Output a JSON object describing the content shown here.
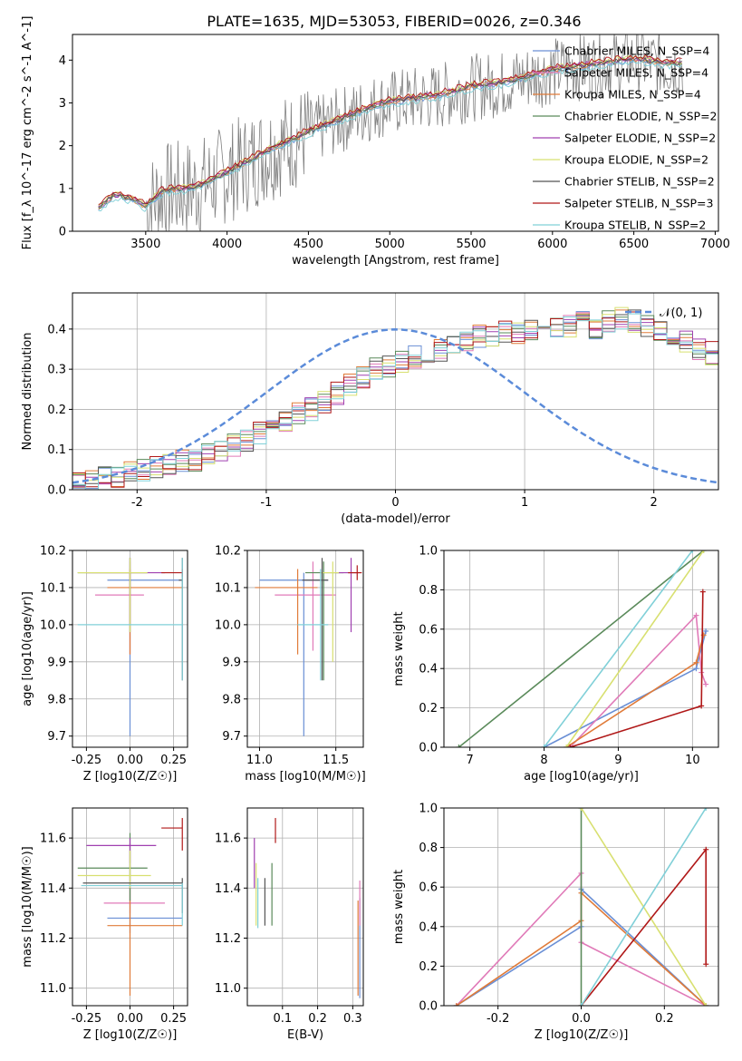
{
  "figure": {
    "title": "PLATE=1635, MJD=53053, FIBERID=0026, z=0.346"
  },
  "chart_data": [
    {
      "id": "spectrum",
      "type": "line",
      "xlabel": "wavelength [Angstrom, rest frame]",
      "ylabel": "Flux [f_λ 10^-17 erg cm^-2 s^-1 A^-1]",
      "xlim": [
        3050,
        7020
      ],
      "ylim": [
        0,
        4.6
      ],
      "xticks": [
        3500,
        4000,
        4500,
        5000,
        5500,
        6000,
        6500,
        7000
      ],
      "yticks": [
        0,
        1,
        2,
        3,
        4
      ],
      "grid": false,
      "legend_position": "upper-right",
      "data_color": "#808080",
      "data_points": [
        [
          3210,
          0.5
        ],
        [
          3300,
          0.8
        ],
        [
          3400,
          0.75
        ],
        [
          3500,
          0.55
        ],
        [
          3600,
          0.9
        ],
        [
          3700,
          0.95
        ],
        [
          3800,
          1.0
        ],
        [
          3900,
          1.15
        ],
        [
          4000,
          1.35
        ],
        [
          4100,
          1.55
        ],
        [
          4200,
          1.75
        ],
        [
          4300,
          1.95
        ],
        [
          4400,
          2.1
        ],
        [
          4500,
          2.3
        ],
        [
          4600,
          2.45
        ],
        [
          4700,
          2.6
        ],
        [
          4800,
          2.75
        ],
        [
          4900,
          2.9
        ],
        [
          5000,
          3.0
        ],
        [
          5100,
          3.05
        ],
        [
          5200,
          3.1
        ],
        [
          5300,
          3.15
        ],
        [
          5400,
          3.25
        ],
        [
          5500,
          3.35
        ],
        [
          5600,
          3.4
        ],
        [
          5700,
          3.45
        ],
        [
          5800,
          3.55
        ],
        [
          5900,
          3.65
        ],
        [
          6000,
          3.75
        ],
        [
          6100,
          3.8
        ],
        [
          6200,
          3.85
        ],
        [
          6300,
          3.9
        ],
        [
          6400,
          3.95
        ],
        [
          6500,
          4.0
        ],
        [
          6600,
          3.95
        ],
        [
          6700,
          3.9
        ],
        [
          6800,
          3.9
        ]
      ],
      "series": [
        {
          "name": "Chabrier MILES, N_SSP=4",
          "color": "#6a8fd5",
          "offset": 0.0
        },
        {
          "name": "Salpeter MILES, N_SSP=4",
          "color": "#e07ab8",
          "offset": 0.05
        },
        {
          "name": "Kroupa MILES, N_SSP=4",
          "color": "#e07b39",
          "offset": 0.02
        },
        {
          "name": "Chabrier ELODIE, N_SSP=2",
          "color": "#5a8a5a",
          "offset": 0.04
        },
        {
          "name": "Salpeter ELODIE, N_SSP=2",
          "color": "#a040b0",
          "offset": 0.06
        },
        {
          "name": "Kroupa ELODIE, N_SSP=2",
          "color": "#d8e070",
          "offset": 0.08
        },
        {
          "name": "Chabrier STELIB, N_SSP=2",
          "color": "#555555",
          "offset": 0.03
        },
        {
          "name": "Salpeter STELIB, N_SSP=3",
          "color": "#b01818",
          "offset": 0.1
        },
        {
          "name": "Kroupa STELIB, N_SSP=2",
          "color": "#80d0d8",
          "offset": -0.05
        }
      ]
    },
    {
      "id": "residuals",
      "type": "step",
      "xlabel": "(data-model)/error",
      "ylabel": "Normed distribution",
      "xlim": [
        -2.5,
        2.5
      ],
      "ylim": [
        0,
        0.49
      ],
      "xticks": [
        -2,
        -1,
        0,
        1,
        2
      ],
      "yticks": [
        0.0,
        0.1,
        0.2,
        0.3,
        0.4
      ],
      "grid": true,
      "legend_position": "upper-right",
      "gaussian_label": "𝒩(0, 1)",
      "gaussian_color": "#5b8bd9",
      "bin_width": 0.1,
      "base_values": [
        0.02,
        0.025,
        0.03,
        0.035,
        0.04,
        0.05,
        0.055,
        0.06,
        0.07,
        0.075,
        0.09,
        0.1,
        0.11,
        0.12,
        0.14,
        0.15,
        0.17,
        0.19,
        0.2,
        0.22,
        0.24,
        0.26,
        0.28,
        0.3,
        0.31,
        0.32,
        0.33,
        0.34,
        0.35,
        0.36,
        0.37,
        0.38,
        0.38,
        0.39,
        0.39,
        0.4,
        0.4,
        0.41,
        0.41,
        0.42,
        0.4,
        0.42,
        0.43,
        0.42,
        0.41,
        0.39,
        0.38,
        0.37,
        0.35,
        0.34,
        0.32,
        0.3,
        0.28,
        0.26,
        0.24,
        0.22,
        0.21,
        0.19,
        0.17,
        0.15,
        0.14,
        0.13,
        0.11,
        0.1,
        0.09,
        0.08,
        0.07,
        0.06,
        0.06,
        0.05,
        0.05
      ],
      "series_colors": [
        "#6a8fd5",
        "#e07ab8",
        "#e07b39",
        "#5a8a5a",
        "#a040b0",
        "#d8e070",
        "#555555",
        "#b01818",
        "#80d0d8"
      ]
    },
    {
      "id": "age_vs_Z",
      "type": "errorbar",
      "xlabel": "Z [log10(Z/Z☉)]",
      "ylabel": "age [log10(age/yr)]",
      "xlim": [
        -0.33,
        0.33
      ],
      "ylim": [
        9.67,
        10.2
      ],
      "xticks": [
        -0.25,
        0.0,
        0.25
      ],
      "yticks": [
        9.7,
        9.8,
        9.9,
        10.0,
        10.1,
        10.2
      ],
      "grid": true,
      "points": [
        {
          "x": 0.0,
          "y": 10.12,
          "xlo": -0.13,
          "xhi": 0.3,
          "ylo": 9.7,
          "yhi": 10.18,
          "color": "#6a8fd5"
        },
        {
          "x": 0.0,
          "y": 10.08,
          "xlo": -0.2,
          "xhi": 0.08,
          "ylo": 9.92,
          "yhi": 10.17,
          "color": "#e07ab8"
        },
        {
          "x": 0.0,
          "y": 10.1,
          "xlo": -0.13,
          "xhi": 0.3,
          "ylo": 9.92,
          "yhi": 10.15,
          "color": "#e07b39"
        },
        {
          "x": 0.0,
          "y": 10.14,
          "xlo": -0.3,
          "xhi": 0.1,
          "ylo": 9.98,
          "yhi": 10.18,
          "color": "#5a8a5a"
        },
        {
          "x": 0.0,
          "y": 10.14,
          "xlo": -0.25,
          "xhi": 0.2,
          "ylo": 10.0,
          "yhi": 10.18,
          "color": "#a040b0"
        },
        {
          "x": 0.0,
          "y": 10.14,
          "xlo": -0.3,
          "xhi": 0.1,
          "ylo": 9.98,
          "yhi": 10.18,
          "color": "#d8e070"
        },
        {
          "x": 0.3,
          "y": 10.12,
          "xlo": 0.28,
          "xhi": 0.3,
          "ylo": 9.85,
          "yhi": 10.18,
          "color": "#555555"
        },
        {
          "x": 0.3,
          "y": 10.14,
          "xlo": 0.18,
          "xhi": 0.3,
          "ylo": 10.13,
          "yhi": 10.15,
          "color": "#b01818"
        },
        {
          "x": 0.3,
          "y": 10.0,
          "xlo": -0.3,
          "xhi": 0.3,
          "ylo": 9.85,
          "yhi": 10.18,
          "color": "#80d0d8"
        }
      ]
    },
    {
      "id": "age_vs_mass",
      "type": "errorbar",
      "xlabel": "mass [log10(M/M☉)]",
      "ylabel": "",
      "xlim": [
        10.92,
        11.68
      ],
      "ylim": [
        9.67,
        10.2
      ],
      "xticks": [
        11.0,
        11.5
      ],
      "yticks": [
        9.7,
        9.8,
        9.9,
        10.0,
        10.1,
        10.2
      ],
      "grid": true,
      "points": [
        {
          "x": 11.29,
          "y": 10.12,
          "xlo": 11.0,
          "xhi": 11.45,
          "ylo": 9.7,
          "yhi": 10.14,
          "color": "#6a8fd5"
        },
        {
          "x": 11.35,
          "y": 10.08,
          "xlo": 11.1,
          "xhi": 11.5,
          "ylo": 9.93,
          "yhi": 10.17,
          "color": "#e07ab8"
        },
        {
          "x": 11.25,
          "y": 10.1,
          "xlo": 10.97,
          "xhi": 11.38,
          "ylo": 9.92,
          "yhi": 10.15,
          "color": "#e07b39"
        },
        {
          "x": 11.42,
          "y": 10.14,
          "xlo": 11.3,
          "xhi": 11.55,
          "ylo": 9.85,
          "yhi": 10.17,
          "color": "#5a8a5a"
        },
        {
          "x": 11.6,
          "y": 10.14,
          "xlo": 11.5,
          "xhi": 11.65,
          "ylo": 9.98,
          "yhi": 10.18,
          "color": "#a040b0"
        },
        {
          "x": 11.48,
          "y": 10.14,
          "xlo": 11.4,
          "xhi": 11.52,
          "ylo": 9.9,
          "yhi": 10.17,
          "color": "#d8e070"
        },
        {
          "x": 11.41,
          "y": 10.12,
          "xlo": 11.28,
          "xhi": 11.45,
          "ylo": 9.85,
          "yhi": 10.18,
          "color": "#555555"
        },
        {
          "x": 11.64,
          "y": 10.14,
          "xlo": 11.58,
          "xhi": 11.67,
          "ylo": 10.12,
          "yhi": 10.16,
          "color": "#b01818"
        },
        {
          "x": 11.4,
          "y": 10.0,
          "xlo": 11.25,
          "xhi": 11.45,
          "ylo": 9.85,
          "yhi": 10.15,
          "color": "#80d0d8"
        }
      ]
    },
    {
      "id": "weight_vs_age",
      "type": "line",
      "xlabel": "age [log10(age/yr)]",
      "ylabel": "mass weight",
      "xlim": [
        6.65,
        10.35
      ],
      "ylim": [
        0,
        1.0
      ],
      "xticks": [
        7,
        8,
        9,
        10
      ],
      "yticks": [
        0.0,
        0.2,
        0.4,
        0.6,
        0.8,
        1.0
      ],
      "grid": true,
      "series": [
        {
          "name": "Chabrier MILES",
          "color": "#6a8fd5",
          "points": [
            [
              8.0,
              0.0
            ],
            [
              10.05,
              0.4
            ],
            [
              10.18,
              0.59
            ]
          ]
        },
        {
          "name": "Salpeter MILES",
          "color": "#e07ab8",
          "points": [
            [
              8.35,
              0.0
            ],
            [
              10.05,
              0.67
            ],
            [
              10.12,
              0.38
            ],
            [
              10.18,
              0.32
            ]
          ]
        },
        {
          "name": "Kroupa MILES",
          "color": "#e07b39",
          "points": [
            [
              8.3,
              0.0
            ],
            [
              10.05,
              0.43
            ],
            [
              10.15,
              0.57
            ]
          ]
        },
        {
          "name": "Chabrier ELODIE",
          "color": "#5a8a5a",
          "points": [
            [
              6.85,
              0.0
            ],
            [
              10.15,
              1.0
            ]
          ]
        },
        {
          "name": "Kroupa ELODIE",
          "color": "#d8e070",
          "points": [
            [
              8.3,
              0.0
            ],
            [
              10.15,
              1.0
            ]
          ]
        },
        {
          "name": "Salpeter STELIB",
          "color": "#b01818",
          "points": [
            [
              8.35,
              0.0
            ],
            [
              10.12,
              0.21
            ],
            [
              10.14,
              0.79
            ]
          ]
        },
        {
          "name": "Kroupa STELIB",
          "color": "#80d0d8",
          "points": [
            [
              8.0,
              0.0
            ],
            [
              10.0,
              1.0
            ]
          ]
        }
      ]
    },
    {
      "id": "mass_vs_Z",
      "type": "errorbar",
      "xlabel": "Z [log10(Z/Z☉)]",
      "ylabel": "mass [log10(M/M☉)]",
      "xlim": [
        -0.33,
        0.33
      ],
      "ylim": [
        10.93,
        11.72
      ],
      "xticks": [
        -0.25,
        0.0,
        0.25
      ],
      "yticks": [
        11.0,
        11.2,
        11.4,
        11.6
      ],
      "grid": true,
      "points": [
        {
          "x": 0.0,
          "y": 11.28,
          "xlo": -0.13,
          "xhi": 0.3,
          "ylo": 11.22,
          "yhi": 11.55,
          "color": "#6a8fd5"
        },
        {
          "x": 0.0,
          "y": 11.34,
          "xlo": -0.15,
          "xhi": 0.2,
          "ylo": 11.3,
          "yhi": 11.58,
          "color": "#e07ab8"
        },
        {
          "x": 0.0,
          "y": 11.25,
          "xlo": -0.13,
          "xhi": 0.3,
          "ylo": 10.97,
          "yhi": 11.4,
          "color": "#e07b39"
        },
        {
          "x": 0.0,
          "y": 11.48,
          "xlo": -0.3,
          "xhi": 0.1,
          "ylo": 11.35,
          "yhi": 11.62,
          "color": "#5a8a5a"
        },
        {
          "x": 0.0,
          "y": 11.57,
          "xlo": -0.25,
          "xhi": 0.15,
          "ylo": 11.5,
          "yhi": 11.6,
          "color": "#a040b0"
        },
        {
          "x": 0.0,
          "y": 11.45,
          "xlo": -0.3,
          "xhi": 0.12,
          "ylo": 11.4,
          "yhi": 11.55,
          "color": "#d8e070"
        },
        {
          "x": 0.3,
          "y": 11.42,
          "xlo": -0.27,
          "xhi": 0.3,
          "ylo": 11.3,
          "yhi": 11.44,
          "color": "#555555"
        },
        {
          "x": 0.3,
          "y": 11.64,
          "xlo": 0.18,
          "xhi": 0.3,
          "ylo": 11.55,
          "yhi": 11.68,
          "color": "#b01818"
        },
        {
          "x": 0.3,
          "y": 11.41,
          "xlo": -0.28,
          "xhi": 0.3,
          "ylo": 11.25,
          "yhi": 11.42,
          "color": "#80d0d8"
        }
      ]
    },
    {
      "id": "mass_vs_EBV",
      "type": "errorbar",
      "xlabel": "E(B-V)",
      "ylabel": "",
      "xlim": [
        0.0,
        0.33
      ],
      "ylim": [
        10.93,
        11.72
      ],
      "xticks": [
        0.1,
        0.2,
        0.3
      ],
      "yticks": [
        11.0,
        11.2,
        11.4,
        11.6
      ],
      "grid": true,
      "points": [
        {
          "x": 0.32,
          "y": 11.28,
          "ylo": 10.96,
          "yhi": 11.36,
          "color": "#6a8fd5"
        },
        {
          "x": 0.32,
          "y": 11.34,
          "ylo": 11.25,
          "yhi": 11.43,
          "color": "#e07ab8"
        },
        {
          "x": 0.315,
          "y": 11.25,
          "ylo": 10.97,
          "yhi": 11.35,
          "color": "#e07b39"
        },
        {
          "x": 0.07,
          "y": 11.45,
          "ylo": 11.25,
          "yhi": 11.5,
          "color": "#5a8a5a"
        },
        {
          "x": 0.02,
          "y": 11.5,
          "ylo": 11.4,
          "yhi": 11.6,
          "color": "#a040b0"
        },
        {
          "x": 0.025,
          "y": 11.42,
          "ylo": 11.25,
          "yhi": 11.5,
          "color": "#d8e070"
        },
        {
          "x": 0.05,
          "y": 11.42,
          "ylo": 11.25,
          "yhi": 11.44,
          "color": "#555555"
        },
        {
          "x": 0.08,
          "y": 11.64,
          "ylo": 11.58,
          "yhi": 11.68,
          "color": "#b01818"
        },
        {
          "x": 0.03,
          "y": 11.4,
          "ylo": 11.24,
          "yhi": 11.44,
          "color": "#80d0d8"
        }
      ]
    },
    {
      "id": "weight_vs_Z",
      "type": "line",
      "xlabel": "Z [log10(Z/Z☉)]",
      "ylabel": "mass weight",
      "xlim": [
        -0.33,
        0.33
      ],
      "ylim": [
        0,
        1.0
      ],
      "xticks": [
        -0.2,
        0.0,
        0.2
      ],
      "yticks": [
        0.0,
        0.2,
        0.4,
        0.6,
        0.8,
        1.0
      ],
      "grid": true,
      "series": [
        {
          "name": "Chabrier MILES",
          "color": "#6a8fd5",
          "points": [
            [
              -0.3,
              0.0
            ],
            [
              0.0,
              0.4
            ],
            [
              0.0,
              0.59
            ],
            [
              0.3,
              0.0
            ]
          ]
        },
        {
          "name": "Salpeter MILES",
          "color": "#e07ab8",
          "points": [
            [
              -0.3,
              0.0
            ],
            [
              0.0,
              0.67
            ],
            [
              0.0,
              0.32
            ],
            [
              0.3,
              0.0
            ]
          ]
        },
        {
          "name": "Kroupa MILES",
          "color": "#e07b39",
          "points": [
            [
              -0.3,
              0.0
            ],
            [
              0.0,
              0.43
            ],
            [
              0.0,
              0.57
            ],
            [
              0.3,
              0.0
            ]
          ]
        },
        {
          "name": "Chabrier ELODIE",
          "color": "#5a8a5a",
          "points": [
            [
              0.0,
              0.0
            ],
            [
              0.0,
              1.0
            ]
          ]
        },
        {
          "name": "Kroupa ELODIE",
          "color": "#d8e070",
          "points": [
            [
              0.0,
              1.0
            ],
            [
              0.3,
              0.0
            ]
          ]
        },
        {
          "name": "Salpeter STELIB",
          "color": "#b01818",
          "points": [
            [
              0.0,
              0.0
            ],
            [
              0.3,
              0.79
            ],
            [
              0.3,
              0.21
            ]
          ]
        },
        {
          "name": "Kroupa STELIB",
          "color": "#80d0d8",
          "points": [
            [
              0.0,
              0.0
            ],
            [
              0.3,
              1.0
            ]
          ]
        }
      ]
    }
  ]
}
